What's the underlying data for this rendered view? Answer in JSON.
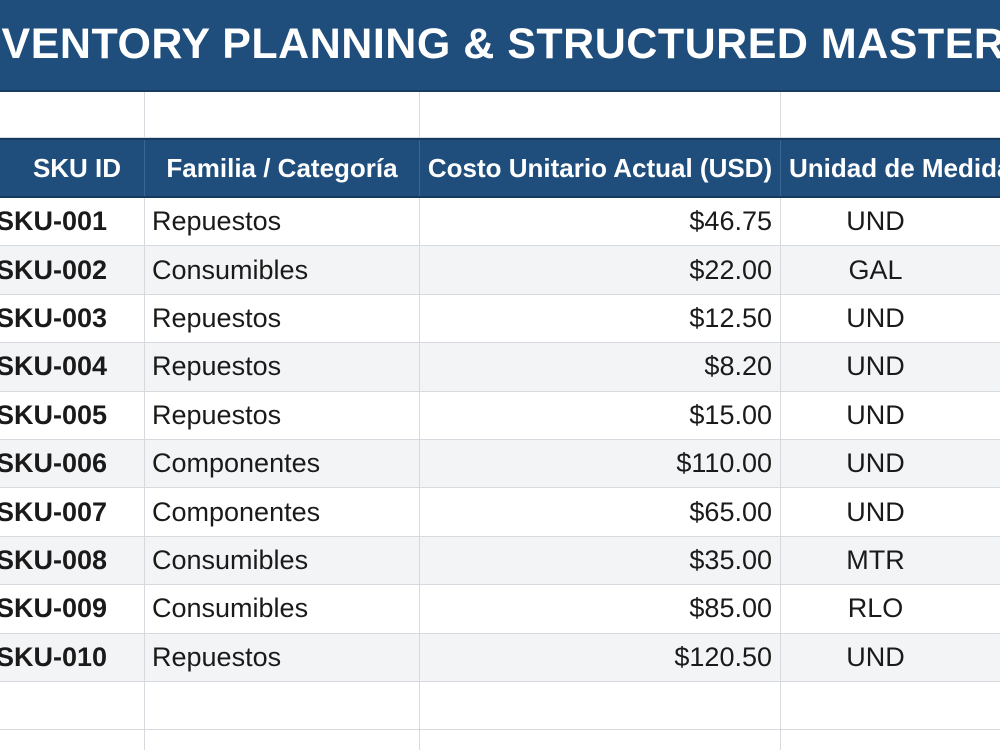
{
  "title": "NVENTORY PLANNING & STRUCTURED MASTER DAT",
  "table": {
    "headers": [
      "SKU ID",
      "Familia / Categoría",
      "Costo Unitario Actual (USD)",
      "Unidad de Medida"
    ],
    "rows": [
      {
        "sku": "SKU-001",
        "familia": "Repuestos",
        "costo": "$46.75",
        "unidad": "UND"
      },
      {
        "sku": "SKU-002",
        "familia": "Consumibles",
        "costo": "$22.00",
        "unidad": "GAL"
      },
      {
        "sku": "SKU-003",
        "familia": "Repuestos",
        "costo": "$12.50",
        "unidad": "UND"
      },
      {
        "sku": "SKU-004",
        "familia": "Repuestos",
        "costo": "$8.20",
        "unidad": "UND"
      },
      {
        "sku": "SKU-005",
        "familia": "Repuestos",
        "costo": "$15.00",
        "unidad": "UND"
      },
      {
        "sku": "SKU-006",
        "familia": "Componentes",
        "costo": "$110.00",
        "unidad": "UND"
      },
      {
        "sku": "SKU-007",
        "familia": "Componentes",
        "costo": "$65.00",
        "unidad": "UND"
      },
      {
        "sku": "SKU-008",
        "familia": "Consumibles",
        "costo": "$35.00",
        "unidad": "MTR"
      },
      {
        "sku": "SKU-009",
        "familia": "Consumibles",
        "costo": "$85.00",
        "unidad": "RLO"
      },
      {
        "sku": "SKU-010",
        "familia": "Repuestos",
        "costo": "$120.50",
        "unidad": "UND"
      }
    ]
  },
  "colors": {
    "header_bg": "#1f4e7d",
    "header_text": "#ffffff",
    "alt_row_bg": "#f3f4f6",
    "grid_line": "#d6d9de"
  }
}
